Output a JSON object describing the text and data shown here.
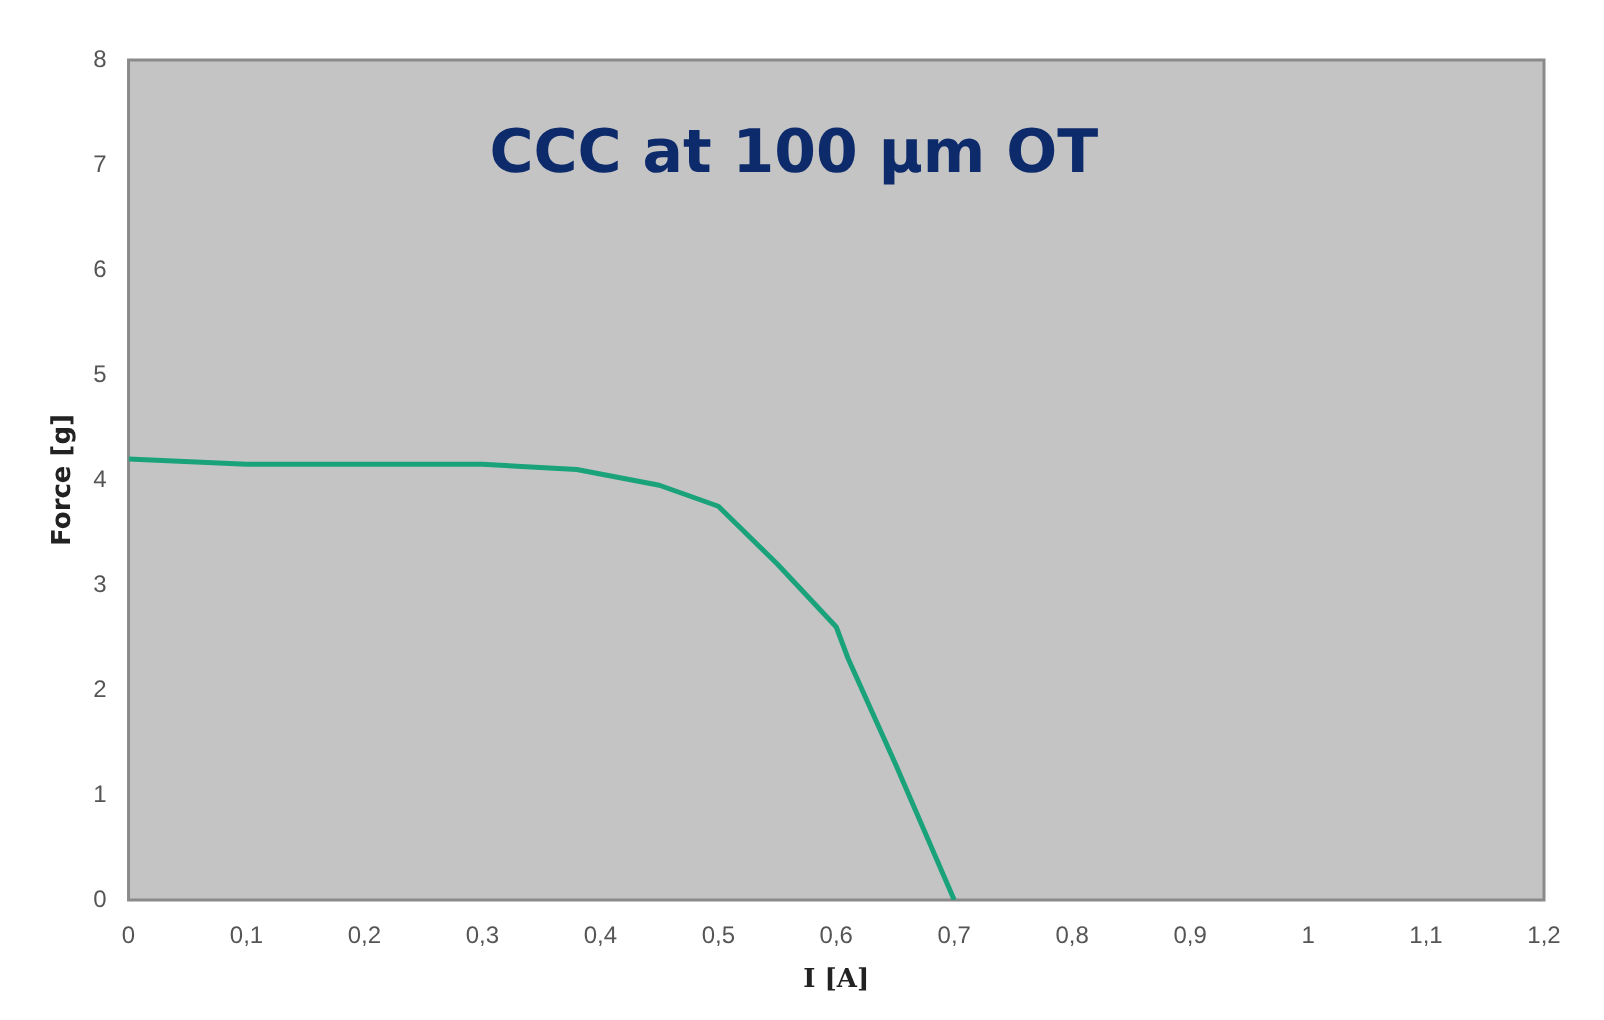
{
  "chart_data": {
    "type": "line",
    "title": "CCC at 100 µm OT",
    "xlabel": "I [A]",
    "ylabel": "Force [g]",
    "series": [
      {
        "color": "#1aa37a",
        "x": [
          0,
          0.1,
          0.2,
          0.3,
          0.38,
          0.45,
          0.5,
          0.55,
          0.6,
          0.61,
          0.65,
          0.7
        ],
        "values": [
          4.2,
          4.15,
          4.15,
          4.15,
          4.1,
          3.95,
          3.75,
          3.2,
          2.6,
          2.3,
          1.3,
          0
        ]
      }
    ],
    "xlim": [
      0,
      1.2
    ],
    "xticks": [
      0,
      {
        "value": 0.1,
        "label": "0,1"
      },
      {
        "value": 0.2,
        "label": "0,2"
      },
      {
        "value": 0.3,
        "label": "0,3"
      },
      {
        "value": 0.4,
        "label": "0,4"
      },
      {
        "value": 0.5,
        "label": "0,5"
      },
      {
        "value": 0.6,
        "label": "0,6"
      },
      {
        "value": 0.7,
        "label": "0,7"
      },
      {
        "value": 0.8,
        "label": "0,8"
      },
      {
        "value": 0.9,
        "label": "0,9"
      },
      1,
      {
        "value": 1.1,
        "label": "1,1"
      },
      {
        "value": 1.2,
        "label": "1,2"
      }
    ],
    "ylim": [
      0,
      8
    ],
    "yticks": [
      0,
      1,
      2,
      3,
      4,
      5,
      6,
      7,
      8
    ],
    "grid": false,
    "legend": false,
    "marker": "none",
    "line_style": "solid"
  }
}
